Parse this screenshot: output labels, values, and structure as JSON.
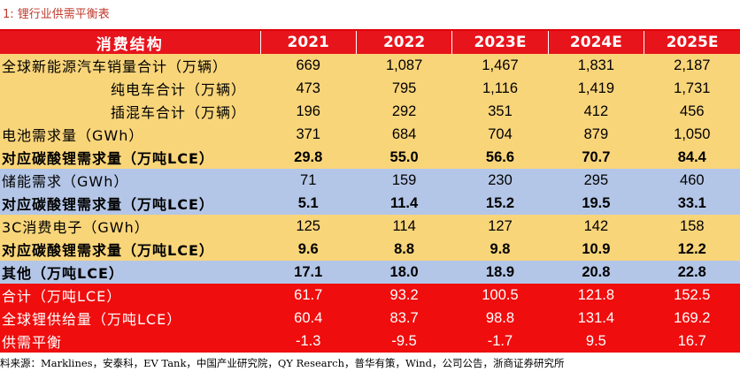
{
  "title": "1:  锂行业供需平衡表",
  "table": {
    "columns": [
      "消费结构",
      "2021",
      "2022",
      "2023E",
      "2024E",
      "2025E"
    ],
    "rows": [
      {
        "label": "全球新能源汽车销量合计（万辆）",
        "values": [
          "669",
          "1,087",
          "1,467",
          "1,831",
          "2,187"
        ],
        "style": "yellow",
        "bold": false,
        "indent": false
      },
      {
        "label": "纯电车合计（万辆）",
        "values": [
          "473",
          "795",
          "1,116",
          "1,419",
          "1,731"
        ],
        "style": "yellow",
        "bold": false,
        "indent": true
      },
      {
        "label": "插混车合计（万辆）",
        "values": [
          "196",
          "292",
          "351",
          "412",
          "456"
        ],
        "style": "yellow",
        "bold": false,
        "indent": true
      },
      {
        "label": "电池需求量（GWh）",
        "values": [
          "371",
          "684",
          "704",
          "879",
          "1,050"
        ],
        "style": "yellow",
        "bold": false,
        "indent": false
      },
      {
        "label": "对应碳酸锂需求量（万吨LCE）",
        "values": [
          "29.8",
          "55.0",
          "56.6",
          "70.7",
          "84.4"
        ],
        "style": "yellow",
        "bold": true,
        "indent": false
      },
      {
        "label": "储能需求（GWh）",
        "values": [
          "71",
          "159",
          "230",
          "295",
          "460"
        ],
        "style": "blue",
        "bold": false,
        "indent": false
      },
      {
        "label": "对应碳酸锂需求量（万吨LCE）",
        "values": [
          "5.1",
          "11.4",
          "15.2",
          "19.5",
          "33.1"
        ],
        "style": "blue",
        "bold": true,
        "indent": false
      },
      {
        "label": "3C消费电子（GWh）",
        "values": [
          "125",
          "114",
          "127",
          "142",
          "158"
        ],
        "style": "yellow",
        "bold": false,
        "indent": false
      },
      {
        "label": "对应碳酸锂需求量（万吨LCE）",
        "values": [
          "9.6",
          "8.8",
          "9.8",
          "10.9",
          "12.2"
        ],
        "style": "yellow",
        "bold": true,
        "indent": false
      },
      {
        "label": "其他（万吨LCE）",
        "values": [
          "17.1",
          "18.0",
          "18.9",
          "20.8",
          "22.8"
        ],
        "style": "blue",
        "bold": true,
        "indent": false
      },
      {
        "label": "合计（万吨LCE）",
        "values": [
          "61.7",
          "93.2",
          "100.5",
          "121.8",
          "152.5"
        ],
        "style": "red",
        "bold": false,
        "indent": false
      },
      {
        "label": "全球锂供给量（万吨LCE）",
        "values": [
          "60.4",
          "83.7",
          "98.8",
          "131.4",
          "169.2"
        ],
        "style": "red",
        "bold": false,
        "indent": false
      },
      {
        "label": "供需平衡",
        "values": [
          "-1.3",
          "-9.5",
          "-1.7",
          "9.5",
          "16.7"
        ],
        "style": "red",
        "bold": false,
        "indent": false
      }
    ]
  },
  "source": "料来源：Marklines，安泰科，EV Tank，中国产业研究院，QY Research，普华有策，Wind，公司公告，浙商证券研究所",
  "colors": {
    "header": "#e8141c",
    "yellow": "#f9d57a",
    "blue": "#b4c6e7",
    "red": "#f00d0d"
  }
}
